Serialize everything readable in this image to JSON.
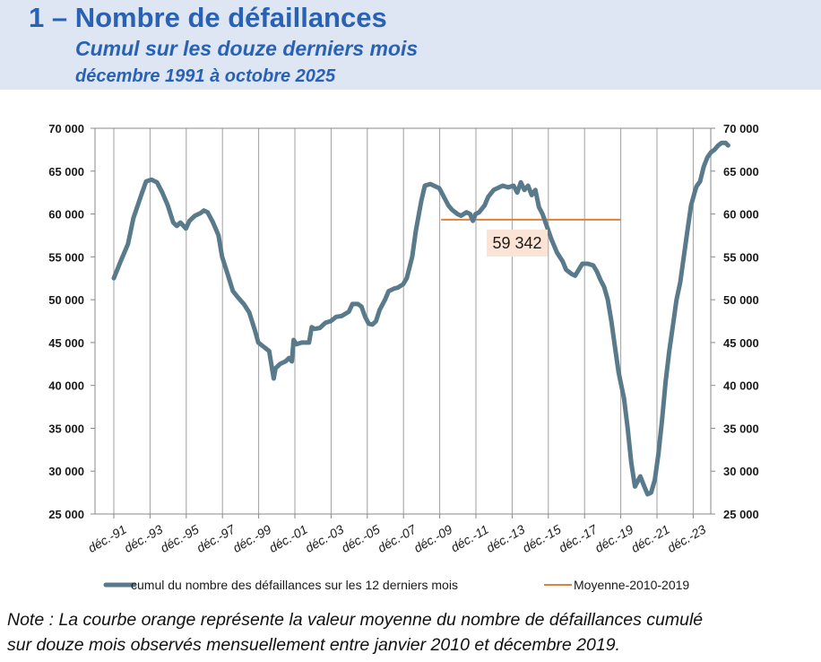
{
  "header": {
    "title": "1 – Nombre de défaillances",
    "subtitle": "Cumul sur les douze derniers mois",
    "date_range": "décembre 1991 à octobre 2025"
  },
  "note": {
    "line1": "Note : La courbe orange représente la valeur moyenne du nombre de défaillances cumulé",
    "line2": "sur douze mois observés mensuellement entre janvier 2010 et décembre 2019."
  },
  "colors": {
    "series": "#587a8a",
    "average": "#e0813a",
    "header_bg": "#dde6f2",
    "header_text": "#2962b5",
    "annotation_bg": "#fbe4d5"
  },
  "chart_data": {
    "type": "line",
    "x_start_year": 1991,
    "x_ticks": [
      "déc.-91",
      "déc.-93",
      "déc.-95",
      "déc.-97",
      "déc.-99",
      "déc.-01",
      "déc.-03",
      "déc.-05",
      "déc.-07",
      "déc.-09",
      "déc.-11",
      "déc.-13",
      "déc.-15",
      "déc.-17",
      "déc.-19",
      "déc.-21",
      "déc.-23"
    ],
    "ylim": [
      25000,
      70000
    ],
    "y_ticks": [
      "25 000",
      "30 000",
      "35 000",
      "40 000",
      "45 000",
      "50 000",
      "55 000",
      "60 000",
      "65 000",
      "70 000"
    ],
    "y_tick_values": [
      25000,
      30000,
      35000,
      40000,
      45000,
      50000,
      55000,
      60000,
      65000,
      70000
    ],
    "grid": "vertical",
    "legend_position": "bottom",
    "series": [
      {
        "name": "cumul du nombre des défaillances sur les 12 derniers mois",
        "points": [
          [
            1991.92,
            52500
          ],
          [
            1992.3,
            54500
          ],
          [
            1992.7,
            56500
          ],
          [
            1993.0,
            59500
          ],
          [
            1993.4,
            62000
          ],
          [
            1993.7,
            63800
          ],
          [
            1994.0,
            64000
          ],
          [
            1994.3,
            63700
          ],
          [
            1994.6,
            62500
          ],
          [
            1994.9,
            61000
          ],
          [
            1995.2,
            59000
          ],
          [
            1995.4,
            58600
          ],
          [
            1995.6,
            59000
          ],
          [
            1995.9,
            58300
          ],
          [
            1996.1,
            59200
          ],
          [
            1996.4,
            59800
          ],
          [
            1996.7,
            60100
          ],
          [
            1996.9,
            60400
          ],
          [
            1997.1,
            60200
          ],
          [
            1997.4,
            59000
          ],
          [
            1997.7,
            57500
          ],
          [
            1997.9,
            55000
          ],
          [
            1998.2,
            53000
          ],
          [
            1998.5,
            51000
          ],
          [
            1998.8,
            50200
          ],
          [
            1999.1,
            49500
          ],
          [
            1999.4,
            48500
          ],
          [
            1999.7,
            46500
          ],
          [
            1999.9,
            45000
          ],
          [
            2000.2,
            44500
          ],
          [
            2000.5,
            44000
          ],
          [
            2000.75,
            40800
          ],
          [
            2000.85,
            42000
          ],
          [
            2001.1,
            42500
          ],
          [
            2001.4,
            42800
          ],
          [
            2001.6,
            43200
          ],
          [
            2001.75,
            42800
          ],
          [
            2001.85,
            45300
          ],
          [
            2002.0,
            44800
          ],
          [
            2002.3,
            45000
          ],
          [
            2002.7,
            45000
          ],
          [
            2002.85,
            46800
          ],
          [
            2003.0,
            46600
          ],
          [
            2003.3,
            46700
          ],
          [
            2003.6,
            47300
          ],
          [
            2003.9,
            47500
          ],
          [
            2004.2,
            48000
          ],
          [
            2004.5,
            48100
          ],
          [
            2004.9,
            48600
          ],
          [
            2005.1,
            49500
          ],
          [
            2005.4,
            49500
          ],
          [
            2005.6,
            49200
          ],
          [
            2005.8,
            48000
          ],
          [
            2006.0,
            47200
          ],
          [
            2006.2,
            47100
          ],
          [
            2006.4,
            47500
          ],
          [
            2006.6,
            48800
          ],
          [
            2006.9,
            50000
          ],
          [
            2007.1,
            51000
          ],
          [
            2007.4,
            51300
          ],
          [
            2007.6,
            51400
          ],
          [
            2007.9,
            51800
          ],
          [
            2008.1,
            52500
          ],
          [
            2008.4,
            55000
          ],
          [
            2008.6,
            58000
          ],
          [
            2008.9,
            61500
          ],
          [
            2009.1,
            63300
          ],
          [
            2009.4,
            63500
          ],
          [
            2009.6,
            63300
          ],
          [
            2009.9,
            63000
          ],
          [
            2010.1,
            62200
          ],
          [
            2010.4,
            61000
          ],
          [
            2010.6,
            60500
          ],
          [
            2010.9,
            60000
          ],
          [
            2011.1,
            59800
          ],
          [
            2011.4,
            60200
          ],
          [
            2011.6,
            60000
          ],
          [
            2011.75,
            59200
          ],
          [
            2011.9,
            60000
          ],
          [
            2012.1,
            60200
          ],
          [
            2012.4,
            61000
          ],
          [
            2012.6,
            62000
          ],
          [
            2012.9,
            62800
          ],
          [
            2013.1,
            63000
          ],
          [
            2013.4,
            63300
          ],
          [
            2013.7,
            63100
          ],
          [
            2014.0,
            63300
          ],
          [
            2014.2,
            62500
          ],
          [
            2014.4,
            63700
          ],
          [
            2014.6,
            62800
          ],
          [
            2014.8,
            63300
          ],
          [
            2015.0,
            62200
          ],
          [
            2015.2,
            62800
          ],
          [
            2015.4,
            60800
          ],
          [
            2015.6,
            60000
          ],
          [
            2015.9,
            58200
          ],
          [
            2016.1,
            57000
          ],
          [
            2016.4,
            55500
          ],
          [
            2016.7,
            54500
          ],
          [
            2016.9,
            53500
          ],
          [
            2017.2,
            53000
          ],
          [
            2017.4,
            52800
          ],
          [
            2017.6,
            53500
          ],
          [
            2017.8,
            54200
          ],
          [
            2018.1,
            54200
          ],
          [
            2018.4,
            54000
          ],
          [
            2018.6,
            53300
          ],
          [
            2018.8,
            52300
          ],
          [
            2019.0,
            51500
          ],
          [
            2019.2,
            50000
          ],
          [
            2019.4,
            47500
          ],
          [
            2019.6,
            44500
          ],
          [
            2019.8,
            41500
          ],
          [
            2020.1,
            38500
          ],
          [
            2020.3,
            35000
          ],
          [
            2020.5,
            31000
          ],
          [
            2020.7,
            28200
          ],
          [
            2020.9,
            29000
          ],
          [
            2021.0,
            29400
          ],
          [
            2021.2,
            28300
          ],
          [
            2021.4,
            27300
          ],
          [
            2021.6,
            27500
          ],
          [
            2021.8,
            29000
          ],
          [
            2022.0,
            32000
          ],
          [
            2022.2,
            36000
          ],
          [
            2022.4,
            40500
          ],
          [
            2022.6,
            44000
          ],
          [
            2022.8,
            47000
          ],
          [
            2023.0,
            50000
          ],
          [
            2023.2,
            52000
          ],
          [
            2023.4,
            55000
          ],
          [
            2023.6,
            58000
          ],
          [
            2023.8,
            61000
          ],
          [
            2024.0,
            62500
          ],
          [
            2024.1,
            63200
          ],
          [
            2024.3,
            63800
          ],
          [
            2024.5,
            65500
          ],
          [
            2024.7,
            66600
          ],
          [
            2024.9,
            67200
          ],
          [
            2025.1,
            67500
          ],
          [
            2025.3,
            68000
          ],
          [
            2025.5,
            68300
          ],
          [
            2025.7,
            68300
          ],
          [
            2025.85,
            68000
          ]
        ]
      },
      {
        "name": "Moyenne-2010-2019",
        "x_range": [
          2010.0,
          2019.92
        ],
        "value": 59342
      }
    ],
    "annotation": "59 342"
  }
}
